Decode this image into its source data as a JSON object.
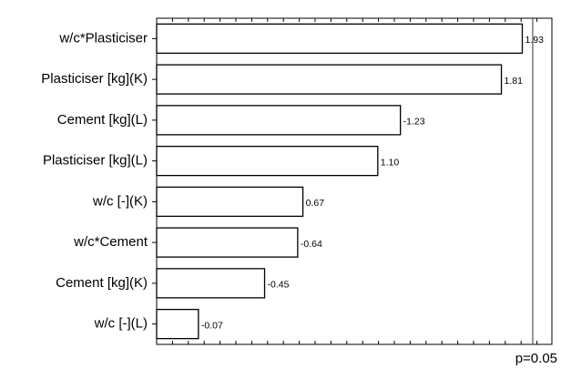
{
  "chart_data": {
    "type": "bar",
    "orientation": "horizontal",
    "categories": [
      "w/c*Plasticiser",
      "Plasticiser [kg](K)",
      "Cement [kg](L)",
      "Plasticiser [kg](L)",
      "w/c [-](K)",
      "w/c*Cement",
      "Cement [kg](K)",
      "w/c [-](L)"
    ],
    "values": [
      1.93,
      1.81,
      -1.23,
      1.1,
      0.67,
      -0.64,
      -0.45,
      -0.07
    ],
    "value_labels": [
      "1.93",
      "1.81",
      "-1.23",
      "1.10",
      "0.67",
      "-0.64",
      "-0.45",
      "-0.07"
    ],
    "color": "#ffffff",
    "xlim": [
      -0.17,
      2.1
    ],
    "reference_line": {
      "value": 1.99,
      "label": "p=0.05"
    }
  }
}
